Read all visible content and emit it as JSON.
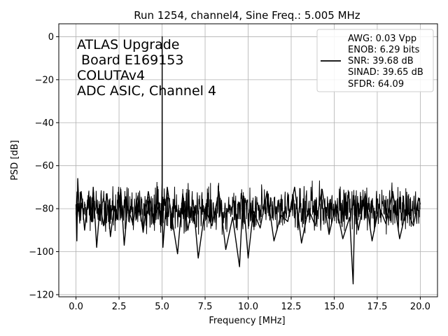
{
  "chart_data": {
    "type": "line",
    "title": "Run 1254, channel4, Sine Freq.: 5.005 MHz",
    "xlabel": "Frequency [MHz]",
    "ylabel": "PSD [dB]",
    "xlim": [
      -1.0,
      21.0
    ],
    "ylim": [
      -121,
      6
    ],
    "xticks": [
      0.0,
      2.5,
      5.0,
      7.5,
      10.0,
      12.5,
      15.0,
      17.5,
      20.0
    ],
    "xtick_labels": [
      "0.0",
      "2.5",
      "5.0",
      "7.5",
      "10.0",
      "12.5",
      "15.0",
      "17.5",
      "20.0"
    ],
    "yticks": [
      0,
      -20,
      -40,
      -60,
      -80,
      -100,
      -120
    ],
    "ytick_labels": [
      "0",
      "−20",
      "−40",
      "−60",
      "−80",
      "−100",
      "−120"
    ],
    "grid": true,
    "line_color": "#000000",
    "annotation_lines": [
      "ATLAS Upgrade",
      " Board E169153",
      "COLUTAv4",
      "ADC ASIC, Channel 4"
    ],
    "legend": {
      "placement": "top-right",
      "lines": [
        "AWG: 0.03 Vpp",
        "ENOB: 6.29 bits",
        "SNR: 39.68 dB",
        "SINAD: 39.65 dB",
        "SFDR: 64.09"
      ]
    },
    "series": [
      {
        "x": [
          0.0,
          0.05,
          0.1,
          0.2,
          0.3,
          0.5,
          0.7,
          0.9,
          1.0,
          1.2,
          1.4,
          1.6,
          1.8,
          2.0,
          2.2,
          2.4,
          2.6,
          2.8,
          3.0,
          3.3,
          3.6,
          3.9,
          4.2,
          4.5,
          4.8,
          4.95,
          5.0,
          5.005,
          5.01,
          5.05,
          5.3,
          5.6,
          5.9,
          6.2,
          6.5,
          6.8,
          7.1,
          7.5,
          7.9,
          8.3,
          8.7,
          9.1,
          9.5,
          9.7,
          9.9,
          10.0,
          10.3,
          10.7,
          11.1,
          11.5,
          11.9,
          12.3,
          12.7,
          13.1,
          13.5,
          13.9,
          14.3,
          14.7,
          15.1,
          15.5,
          15.9,
          16.1,
          16.2,
          16.4,
          16.8,
          17.2,
          17.6,
          18.0,
          18.4,
          18.8,
          19.2,
          19.6,
          19.9,
          20.0
        ],
        "y": [
          -78,
          -95,
          -66,
          -84,
          -72,
          -90,
          -75,
          -86,
          -70,
          -98,
          -78,
          -88,
          -73,
          -93,
          -80,
          -85,
          -71,
          -97,
          -79,
          -87,
          -74,
          -91,
          -72,
          -85,
          -79,
          -88,
          -68,
          0,
          -75,
          -98,
          -70,
          -86,
          -101,
          -73,
          -90,
          -76,
          -103,
          -80,
          -88,
          -72,
          -99,
          -84,
          -107,
          -74,
          -93,
          -103,
          -81,
          -89,
          -72,
          -95,
          -83,
          -86,
          -70,
          -96,
          -80,
          -88,
          -71,
          -92,
          -78,
          -94,
          -84,
          -115,
          -76,
          -90,
          -73,
          -95,
          -79,
          -87,
          -72,
          -94,
          -80,
          -88,
          -75,
          -78
        ]
      }
    ]
  }
}
